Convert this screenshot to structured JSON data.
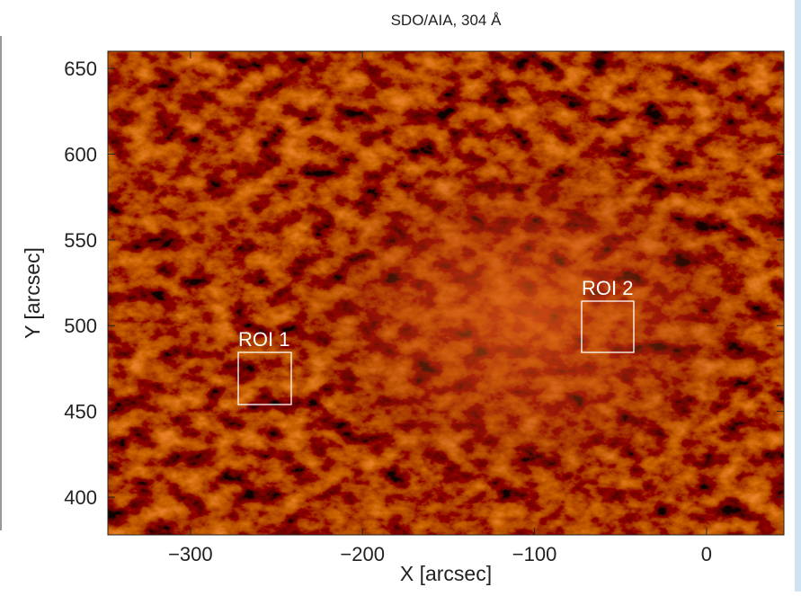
{
  "chart_data": {
    "type": "image",
    "title": "SDO/AIA, 304 Å",
    "x_label": "X [arcsec]",
    "y_label": "Y [arcsec]",
    "xlim": [
      -348,
      45
    ],
    "ylim": [
      378,
      660
    ],
    "xticks": [
      {
        "value": -300,
        "label": "−300"
      },
      {
        "value": -200,
        "label": "−200"
      },
      {
        "value": -100,
        "label": "−100"
      },
      0
    ],
    "yticks": [
      400,
      450,
      500,
      550,
      600,
      650
    ],
    "annotations": [
      "ROI 1",
      "ROI 2"
    ]
  }
}
